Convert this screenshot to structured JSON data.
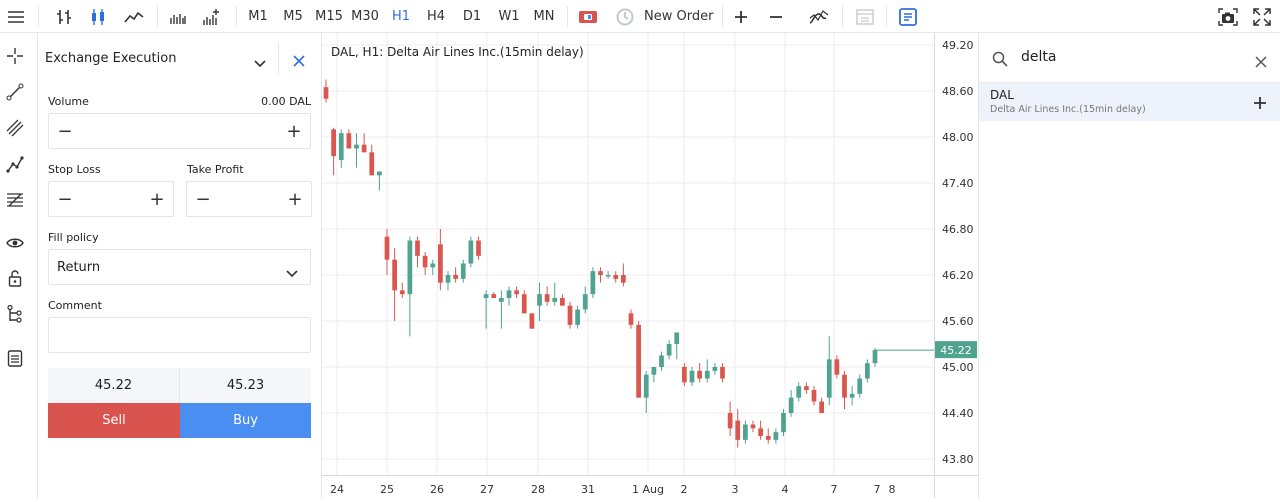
{
  "toolbar": {
    "timeframes": [
      "M1",
      "M5",
      "M15",
      "M30",
      "H1",
      "H4",
      "D1",
      "W1",
      "MN"
    ],
    "active_timeframe": "H1",
    "new_order_label": "New Order",
    "accent": "#2e6fe0"
  },
  "order_panel": {
    "title": "Exchange Execution",
    "volume_label": "Volume",
    "volume_value": "0.00 DAL",
    "stop_loss_label": "Stop Loss",
    "take_profit_label": "Take Profit",
    "fill_policy_label": "Fill policy",
    "fill_policy_value": "Return",
    "comment_label": "Comment",
    "bid": "45.22",
    "ask": "45.23",
    "sell_label": "Sell",
    "buy_label": "Buy",
    "sell_color": "#d9534f",
    "buy_color": "#4a8ef1"
  },
  "chart": {
    "title": "DAL, H1: Delta Air Lines Inc.(15min delay)",
    "price_labels": [
      "49.20",
      "48.60",
      "48.00",
      "47.40",
      "46.80",
      "46.20",
      "45.60",
      "45.00",
      "44.40",
      "43.80"
    ],
    "current_price": "45.22",
    "date_labels": [
      "24",
      "25",
      "26",
      "27",
      "28",
      "31",
      "1 Aug",
      "2",
      "3",
      "4",
      "7",
      "7",
      "8"
    ],
    "up_color": "#4fa38f",
    "down_color": "#d9574f"
  },
  "chart_data": {
    "type": "candlestick",
    "ylim": [
      43.5,
      49.3
    ],
    "last_price": 45.22,
    "candles": [
      [
        48.65,
        48.75,
        48.45,
        48.5
      ],
      [
        48.1,
        48.12,
        47.5,
        47.75
      ],
      [
        47.7,
        48.1,
        47.6,
        48.05
      ],
      [
        48.05,
        48.1,
        47.9,
        47.85
      ],
      [
        47.85,
        48.05,
        47.6,
        47.9
      ],
      [
        47.9,
        48.05,
        47.8,
        47.8
      ],
      [
        47.8,
        47.9,
        47.5,
        47.5
      ],
      [
        47.5,
        47.55,
        47.3,
        47.55
      ],
      [
        46.7,
        46.8,
        46.2,
        46.4
      ],
      [
        46.4,
        46.55,
        45.6,
        46.0
      ],
      [
        46.0,
        46.1,
        45.9,
        45.95
      ],
      [
        45.95,
        46.7,
        45.4,
        46.65
      ],
      [
        46.65,
        46.7,
        46.3,
        46.45
      ],
      [
        46.45,
        46.5,
        46.2,
        46.3
      ],
      [
        46.3,
        46.4,
        46.2,
        46.35
      ],
      [
        46.6,
        46.8,
        46.0,
        46.1
      ],
      [
        46.1,
        46.25,
        46.0,
        46.2
      ],
      [
        46.2,
        46.3,
        46.1,
        46.15
      ],
      [
        46.15,
        46.4,
        46.1,
        46.35
      ],
      [
        46.35,
        46.7,
        46.3,
        46.65
      ],
      [
        46.65,
        46.7,
        46.4,
        46.45
      ],
      [
        45.9,
        46.0,
        45.5,
        45.95
      ],
      [
        45.95,
        45.98,
        45.9,
        45.9
      ],
      [
        45.85,
        46.0,
        45.5,
        45.9
      ],
      [
        45.9,
        46.05,
        45.8,
        46.0
      ],
      [
        46.0,
        46.05,
        45.9,
        45.95
      ],
      [
        45.95,
        46.0,
        45.7,
        45.7
      ],
      [
        45.7,
        45.7,
        45.5,
        45.5
      ],
      [
        45.8,
        46.1,
        45.6,
        45.95
      ],
      [
        45.95,
        46.05,
        45.8,
        45.85
      ],
      [
        45.85,
        46.1,
        45.8,
        45.9
      ],
      [
        45.9,
        45.95,
        45.85,
        45.8
      ],
      [
        45.8,
        45.85,
        45.5,
        45.55
      ],
      [
        45.55,
        45.8,
        45.5,
        45.75
      ],
      [
        45.75,
        46.05,
        45.7,
        45.95
      ],
      [
        45.95,
        46.3,
        45.9,
        46.25
      ],
      [
        46.25,
        46.3,
        46.1,
        46.2
      ],
      [
        46.2,
        46.25,
        46.15,
        46.2
      ],
      [
        46.2,
        46.25,
        46.1,
        46.15
      ],
      [
        46.2,
        46.35,
        46.05,
        46.1
      ],
      [
        45.7,
        45.75,
        45.5,
        45.55
      ],
      [
        45.55,
        45.6,
        44.6,
        44.6
      ],
      [
        44.6,
        44.95,
        44.4,
        44.9
      ],
      [
        44.9,
        45.0,
        44.8,
        45.0
      ],
      [
        45.0,
        45.2,
        44.95,
        45.15
      ],
      [
        45.15,
        45.35,
        45.1,
        45.3
      ],
      [
        45.3,
        45.45,
        45.1,
        45.45
      ],
      [
        45.0,
        45.05,
        44.75,
        44.8
      ],
      [
        44.8,
        45.0,
        44.75,
        44.95
      ],
      [
        44.95,
        45.05,
        44.8,
        44.85
      ],
      [
        44.85,
        45.1,
        44.8,
        44.95
      ],
      [
        44.95,
        45.05,
        44.9,
        45.0
      ],
      [
        45.0,
        45.05,
        44.8,
        44.85
      ],
      [
        44.4,
        44.55,
        44.1,
        44.2
      ],
      [
        44.3,
        44.45,
        43.95,
        44.05
      ],
      [
        44.05,
        44.3,
        44.0,
        44.25
      ],
      [
        44.25,
        44.3,
        44.15,
        44.2
      ],
      [
        44.2,
        44.3,
        44.05,
        44.1
      ],
      [
        44.1,
        44.2,
        44.0,
        44.05
      ],
      [
        44.05,
        44.2,
        44.0,
        44.15
      ],
      [
        44.15,
        44.45,
        44.1,
        44.4
      ],
      [
        44.4,
        44.7,
        44.35,
        44.6
      ],
      [
        44.6,
        44.8,
        44.55,
        44.75
      ],
      [
        44.75,
        44.8,
        44.65,
        44.7
      ],
      [
        44.7,
        44.75,
        44.5,
        44.55
      ],
      [
        44.55,
        44.6,
        44.4,
        44.4
      ],
      [
        44.6,
        45.4,
        44.5,
        45.1
      ],
      [
        45.1,
        45.15,
        44.85,
        44.9
      ],
      [
        44.9,
        44.95,
        44.45,
        44.6
      ],
      [
        44.6,
        44.75,
        44.5,
        44.65
      ],
      [
        44.65,
        44.9,
        44.6,
        44.85
      ],
      [
        44.85,
        45.1,
        44.8,
        45.05
      ],
      [
        45.05,
        45.25,
        45.0,
        45.22
      ]
    ]
  },
  "symbol_search": {
    "query": "delta",
    "results": [
      {
        "symbol": "DAL",
        "description": "Delta Air Lines Inc.(15min delay)"
      }
    ]
  }
}
